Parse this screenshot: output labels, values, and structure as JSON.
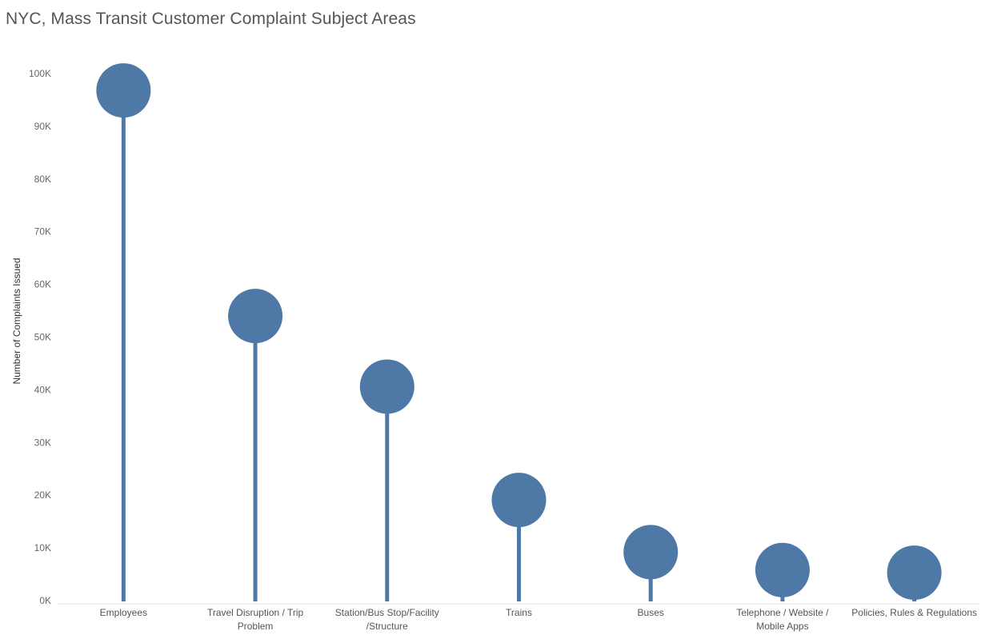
{
  "chart_data": {
    "type": "lollipop",
    "title": "NYC, Mass Transit Customer Complaint Subject Areas",
    "xlabel": "",
    "ylabel": "Number of Complaints Issued",
    "ylim": [
      0,
      100000
    ],
    "yticks": [
      0,
      10000,
      20000,
      30000,
      40000,
      50000,
      60000,
      70000,
      80000,
      90000,
      100000
    ],
    "ytick_labels": [
      "0K",
      "10K",
      "20K",
      "30K",
      "40K",
      "50K",
      "60K",
      "70K",
      "80K",
      "90K",
      "100K"
    ],
    "categories": [
      [
        "Employees"
      ],
      [
        "Travel Disruption / Trip",
        "Problem"
      ],
      [
        "Station/Bus Stop/Facility",
        "/Structure"
      ],
      [
        "Trains"
      ],
      [
        "Buses"
      ],
      [
        "Telephone / Website /",
        "Mobile Apps"
      ],
      [
        "Policies, Rules & Regulations"
      ]
    ],
    "values": [
      96800,
      54000,
      40600,
      19100,
      9200,
      5800,
      5300
    ],
    "grid": false,
    "legend": "none",
    "color": "#4e79a7"
  }
}
